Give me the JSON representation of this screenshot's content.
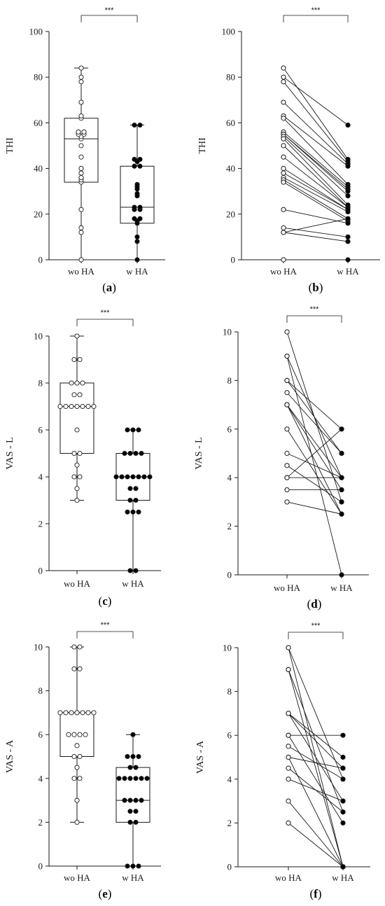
{
  "colors": {
    "ink": "#1a1a1a",
    "filled": "#000000",
    "open": "#ffffff"
  },
  "chart_data": [
    {
      "id": "a",
      "panel_label": "a",
      "type": "boxplot",
      "ylabel": "THI",
      "categories": [
        "wo HA",
        "w HA"
      ],
      "ylim": [
        0,
        100
      ],
      "yticks": [
        0,
        20,
        40,
        60,
        80,
        100
      ],
      "significance": "***",
      "box_stats": [
        {
          "min": 0,
          "q1": 34,
          "median": 53,
          "q3": 62,
          "max": 84
        },
        {
          "min": 0,
          "q1": 16,
          "median": 23,
          "q3": 41,
          "max": 59
        }
      ],
      "points": [
        [
          84,
          80,
          78,
          69,
          63,
          62,
          56,
          56,
          55,
          55,
          54,
          53,
          50,
          45,
          40,
          38,
          36,
          35,
          34,
          22,
          14,
          12,
          0
        ],
        [
          59,
          59,
          44,
          44,
          43,
          41,
          41,
          33,
          32,
          31,
          29,
          28,
          23,
          23,
          22,
          22,
          18,
          18,
          17,
          16,
          10,
          8,
          0
        ]
      ]
    },
    {
      "id": "b",
      "panel_label": "b",
      "type": "paired-line",
      "ylabel": "THI",
      "categories": [
        "wo HA",
        "w HA"
      ],
      "ylim": [
        0,
        100
      ],
      "yticks": [
        0,
        20,
        40,
        60,
        80,
        100
      ],
      "significance": "***",
      "pairs": [
        [
          84,
          44
        ],
        [
          80,
          59
        ],
        [
          78,
          43
        ],
        [
          69,
          42
        ],
        [
          63,
          41
        ],
        [
          62,
          33
        ],
        [
          56,
          32
        ],
        [
          55,
          31
        ],
        [
          55,
          30
        ],
        [
          54,
          28
        ],
        [
          53,
          24
        ],
        [
          50,
          23
        ],
        [
          45,
          23
        ],
        [
          40,
          22
        ],
        [
          38,
          22
        ],
        [
          36,
          21
        ],
        [
          35,
          18
        ],
        [
          34,
          17
        ],
        [
          22,
          16
        ],
        [
          14,
          10
        ],
        [
          12,
          8
        ],
        [
          12,
          18
        ],
        [
          0,
          0
        ]
      ]
    },
    {
      "id": "c",
      "panel_label": "c",
      "type": "boxplot",
      "ylabel": "VAS - L",
      "categories": [
        "wo HA",
        "w HA"
      ],
      "ylim": [
        0,
        10
      ],
      "yticks": [
        0,
        2,
        4,
        6,
        8,
        10
      ],
      "significance": "***",
      "box_stats": [
        {
          "min": 3,
          "q1": 5,
          "median": 7,
          "q3": 8,
          "max": 10
        },
        {
          "min": 0,
          "q1": 3,
          "median": 4,
          "q3": 5,
          "max": 6
        }
      ],
      "points": [
        [
          10,
          9,
          9,
          8,
          8,
          8,
          7.5,
          7.5,
          7,
          7,
          7,
          7,
          7,
          7,
          7,
          6,
          5,
          5,
          4.5,
          4,
          4,
          3.5,
          3
        ],
        [
          6,
          6,
          6,
          5,
          5,
          5,
          5,
          4,
          4,
          4,
          4,
          4,
          4,
          4,
          3.5,
          3.5,
          3,
          3,
          2.5,
          2.5,
          2.5,
          0,
          0
        ]
      ]
    },
    {
      "id": "d",
      "panel_label": "d",
      "type": "paired-line",
      "ylabel": "VAS - L",
      "categories": [
        "wo HA",
        "w HA"
      ],
      "ylim": [
        0,
        10
      ],
      "yticks": [
        0,
        2,
        4,
        6,
        8,
        10
      ],
      "significance": "***",
      "pairs": [
        [
          10,
          3
        ],
        [
          9,
          0
        ],
        [
          8,
          6
        ],
        [
          7.5,
          5
        ],
        [
          7,
          3.5
        ],
        [
          7,
          4
        ],
        [
          7,
          2.5
        ],
        [
          6,
          2.5
        ],
        [
          5,
          4
        ],
        [
          4.5,
          3
        ],
        [
          4,
          4
        ],
        [
          4,
          6
        ],
        [
          3.5,
          3.5
        ],
        [
          3,
          2.5
        ],
        [
          8,
          5
        ],
        [
          9,
          4
        ]
      ]
    },
    {
      "id": "e",
      "panel_label": "e",
      "type": "boxplot",
      "ylabel": "VAS - A",
      "categories": [
        "wo HA",
        "w HA"
      ],
      "ylim": [
        0,
        10
      ],
      "yticks": [
        0,
        2,
        4,
        6,
        8,
        10
      ],
      "significance": "***",
      "box_stats": [
        {
          "min": 2,
          "q1": 5,
          "median": 7,
          "q3": 7,
          "max": 10
        },
        {
          "min": 0,
          "q1": 2,
          "median": 3,
          "q3": 4.5,
          "max": 6
        }
      ],
      "points": [
        [
          10,
          10,
          9,
          9,
          7,
          7,
          7,
          7,
          7,
          7,
          7,
          6,
          6,
          6,
          6,
          5.5,
          5,
          5,
          4.5,
          4,
          4,
          3,
          2
        ],
        [
          6,
          5,
          5,
          5,
          4.5,
          4.5,
          4,
          4,
          4,
          4,
          4,
          4,
          3,
          3,
          3,
          3,
          2.5,
          2.5,
          2,
          2,
          0,
          0,
          0
        ]
      ]
    },
    {
      "id": "f",
      "panel_label": "f",
      "type": "paired-line",
      "ylabel": "VAS - A",
      "categories": [
        "wo HA",
        "w HA"
      ],
      "ylim": [
        0,
        10
      ],
      "yticks": [
        0,
        2,
        4,
        6,
        8,
        10
      ],
      "significance": "***",
      "pairs": [
        [
          10,
          4
        ],
        [
          10,
          0
        ],
        [
          9,
          2.5
        ],
        [
          9,
          0
        ],
        [
          7,
          5
        ],
        [
          7,
          4.5
        ],
        [
          7,
          3
        ],
        [
          6,
          6
        ],
        [
          6,
          2
        ],
        [
          5.5,
          4
        ],
        [
          5,
          4.5
        ],
        [
          5,
          0
        ],
        [
          4.5,
          2.5
        ],
        [
          4,
          3
        ],
        [
          3,
          0
        ],
        [
          2,
          0
        ]
      ]
    }
  ]
}
